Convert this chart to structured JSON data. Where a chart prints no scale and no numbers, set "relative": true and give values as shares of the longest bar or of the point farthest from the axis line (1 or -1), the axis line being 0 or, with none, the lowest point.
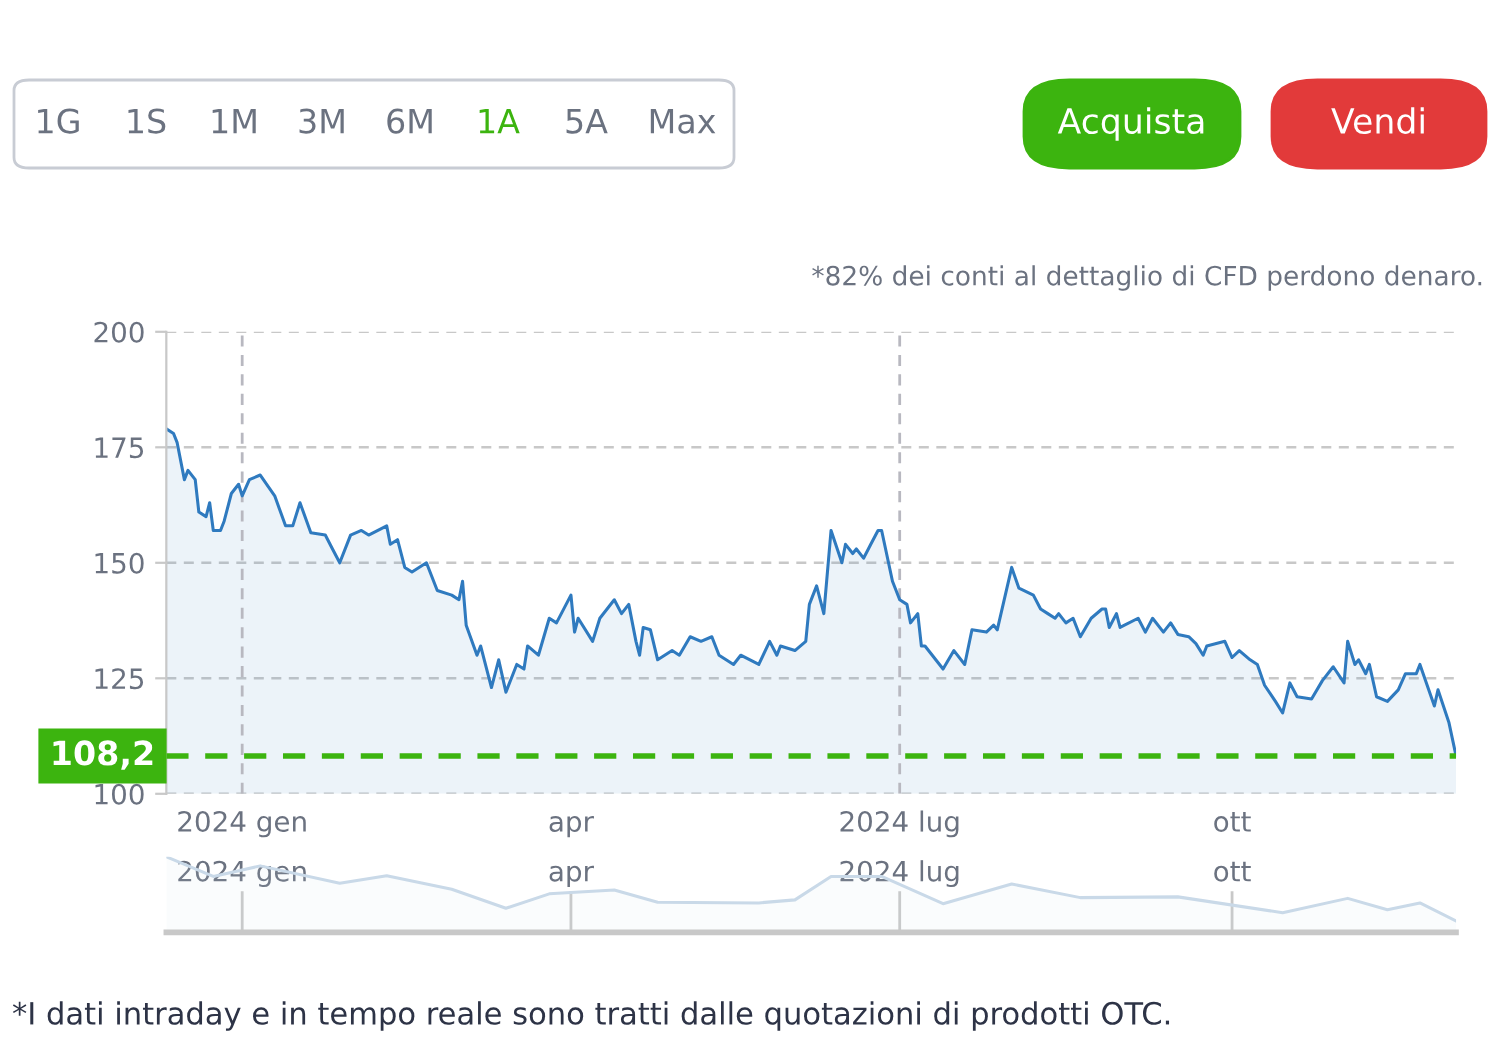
{
  "chart_data": [
    {
      "type": "area",
      "x": [
        "2023-12-11",
        "2023-12-13",
        "2023-12-14",
        "2023-12-16",
        "2023-12-17",
        "2023-12-19",
        "2023-12-20",
        "2023-12-22",
        "2023-12-23",
        "2023-12-24",
        "2023-12-26",
        "2023-12-27",
        "2023-12-29",
        "2023-12-31",
        "2024-01-01",
        "2024-01-03",
        "2024-01-06",
        "2024-01-10",
        "2024-01-13",
        "2024-01-15",
        "2024-01-17",
        "2024-01-20",
        "2024-01-24",
        "2024-01-26",
        "2024-01-28",
        "2024-01-31",
        "2024-02-03",
        "2024-02-05",
        "2024-02-10",
        "2024-02-11",
        "2024-02-13",
        "2024-02-15",
        "2024-02-17",
        "2024-02-21",
        "2024-02-24",
        "2024-02-28",
        "2024-03-01",
        "2024-03-02",
        "2024-03-03",
        "2024-03-06",
        "2024-03-07",
        "2024-03-10",
        "2024-03-12",
        "2024-03-14",
        "2024-03-17",
        "2024-03-19",
        "2024-03-20",
        "2024-03-23",
        "2024-03-26",
        "2024-03-28",
        "2024-04-01",
        "2024-04-02",
        "2024-04-03",
        "2024-04-07",
        "2024-04-09",
        "2024-04-13",
        "2024-04-15",
        "2024-04-17",
        "2024-04-19",
        "2024-04-20",
        "2024-04-21",
        "2024-04-23",
        "2024-04-25",
        "2024-04-29",
        "2024-05-01",
        "2024-05-04",
        "2024-05-07",
        "2024-05-10",
        "2024-05-12",
        "2024-05-16",
        "2024-05-18",
        "2024-05-23",
        "2024-05-26",
        "2024-05-28",
        "2024-05-29",
        "2024-06-02",
        "2024-06-05",
        "2024-06-06",
        "2024-06-08",
        "2024-06-10",
        "2024-06-12",
        "2024-06-15",
        "2024-06-16",
        "2024-06-18",
        "2024-06-19",
        "2024-06-21",
        "2024-06-23",
        "2024-06-25",
        "2024-06-26",
        "2024-06-29",
        "2024-07-01",
        "2024-07-03",
        "2024-07-04",
        "2024-07-06",
        "2024-07-07",
        "2024-07-08",
        "2024-07-13",
        "2024-07-16",
        "2024-07-19",
        "2024-07-21",
        "2024-07-25",
        "2024-07-27",
        "2024-07-28",
        "2024-08-01",
        "2024-08-03",
        "2024-08-07",
        "2024-08-09",
        "2024-08-11",
        "2024-08-13",
        "2024-08-14",
        "2024-08-16",
        "2024-08-18",
        "2024-08-20",
        "2024-08-23",
        "2024-08-26",
        "2024-08-27",
        "2024-08-28",
        "2024-08-30",
        "2024-08-31",
        "2024-09-05",
        "2024-09-07",
        "2024-09-09",
        "2024-09-12",
        "2024-09-14",
        "2024-09-16",
        "2024-09-19",
        "2024-09-21",
        "2024-09-23",
        "2024-09-24",
        "2024-09-29",
        "2024-10-01",
        "2024-10-03",
        "2024-10-06",
        "2024-10-08",
        "2024-10-10",
        "2024-10-13",
        "2024-10-15",
        "2024-10-17",
        "2024-10-19",
        "2024-10-23",
        "2024-10-26",
        "2024-10-29",
        "2024-11-01",
        "2024-11-02",
        "2024-11-04",
        "2024-11-05",
        "2024-11-07",
        "2024-11-08",
        "2024-11-10",
        "2024-11-13",
        "2024-11-16",
        "2024-11-18",
        "2024-11-21",
        "2024-11-22",
        "2024-11-26",
        "2024-11-27",
        "2024-11-30",
        "2024-12-02"
      ],
      "series": [
        {
          "color": "#2f7abf",
          "values": [
            179,
            178,
            176,
            168,
            170,
            168,
            161,
            160,
            163,
            157,
            157,
            159,
            165,
            167,
            164.5,
            168,
            169,
            164.5,
            158,
            158,
            163,
            156.5,
            156,
            153,
            150,
            156,
            157,
            156,
            158,
            154,
            155,
            149,
            148,
            150,
            144,
            143,
            142,
            146,
            136.5,
            130,
            132,
            123,
            129,
            122,
            128,
            127,
            132,
            130,
            138,
            137,
            143,
            135,
            138,
            133,
            138,
            142,
            139,
            141,
            133,
            130,
            136,
            135.5,
            129,
            131,
            130,
            134,
            133,
            134,
            130,
            128,
            130,
            128,
            133,
            130,
            132,
            131,
            133,
            141,
            145,
            139,
            157,
            150,
            154,
            152,
            153,
            151,
            154,
            157,
            157,
            146,
            142,
            141,
            137,
            139,
            132,
            132,
            127,
            131,
            128,
            135.5,
            135,
            136.5,
            135.5,
            149,
            144.5,
            143,
            140,
            139,
            138,
            139,
            137,
            138,
            134,
            138,
            140,
            140,
            136,
            139,
            136,
            138,
            135,
            138,
            135,
            137,
            134.5,
            134,
            132.5,
            130,
            132,
            133,
            129.5,
            131,
            129,
            128,
            123.5,
            120,
            117.5,
            124,
            121,
            120.5,
            124.5,
            127.5,
            124,
            133,
            128,
            129,
            126,
            128,
            121,
            120,
            122.5,
            126,
            126,
            128,
            119,
            122.5,
            115.5,
            108.2
          ]
        }
      ],
      "xlim": [
        "2023-12-11",
        "2024-12-02"
      ],
      "xticks": [
        {
          "value": "2024-01-01",
          "label": "2024 gen"
        },
        {
          "value": "2024-04-01",
          "label": "apr"
        },
        {
          "value": "2024-07-01",
          "label": "2024 lug"
        },
        {
          "value": "2024-10-01",
          "label": "ott"
        }
      ],
      "ylim": [
        100,
        200
      ],
      "yticks": [
        100,
        125,
        150,
        175,
        200
      ],
      "grid": "y",
      "ref_lines": [
        {
          "axis": "y",
          "value": 108.2,
          "label": "108,2",
          "color": "#3cb40f",
          "line_style": "dashed"
        },
        {
          "axis": "x",
          "value": "2024-01-01",
          "label": null,
          "color": "#b8b8c0",
          "line_style": "dashed"
        },
        {
          "axis": "x",
          "value": "2024-07-01",
          "label": null,
          "color": "#b8b8c0",
          "line_style": "dashed"
        }
      ],
      "annotations": [
        "1G",
        "1S",
        "1M",
        "3M",
        "6M",
        "1A",
        "5A",
        "Max",
        "Acquista",
        "Vendi",
        "*82% dei conti al dettaglio di CFD perdono denaro.",
        "*I dati intraday e in tempo reale sono tratti dalle quotazioni di prodotti OTC."
      ]
    },
    {
      "type": "area",
      "relative": true,
      "x": [
        "2023-12-11",
        "2023-12-24",
        "2024-01-06",
        "2024-01-28",
        "2024-02-10",
        "2024-02-28",
        "2024-03-14",
        "2024-03-26",
        "2024-04-13",
        "2024-04-25",
        "2024-05-23",
        "2024-06-02",
        "2024-06-12",
        "2024-06-26",
        "2024-07-13",
        "2024-08-01",
        "2024-08-20",
        "2024-09-16",
        "2024-10-15",
        "2024-11-02",
        "2024-11-13",
        "2024-11-22",
        "2024-12-02"
      ],
      "series": [
        {
          "color": "#c9d9e8",
          "values": [
            1.0,
            0.74,
            0.88,
            0.65,
            0.75,
            0.57,
            0.32,
            0.51,
            0.56,
            0.4,
            0.39,
            0.43,
            0.74,
            0.74,
            0.38,
            0.64,
            0.46,
            0.47,
            0.26,
            0.45,
            0.3,
            0.39,
            0.15
          ]
        }
      ],
      "xlim": [
        "2023-12-11",
        "2024-12-02"
      ],
      "xticks": [
        {
          "value": "2024-01-01",
          "label": "2024 gen"
        },
        {
          "value": "2024-04-01",
          "label": "apr"
        },
        {
          "value": "2024-07-01",
          "label": "2024 lug"
        },
        {
          "value": "2024-10-01",
          "label": "ott"
        }
      ],
      "tick_labels": "x",
      "grid": "x"
    }
  ]
}
